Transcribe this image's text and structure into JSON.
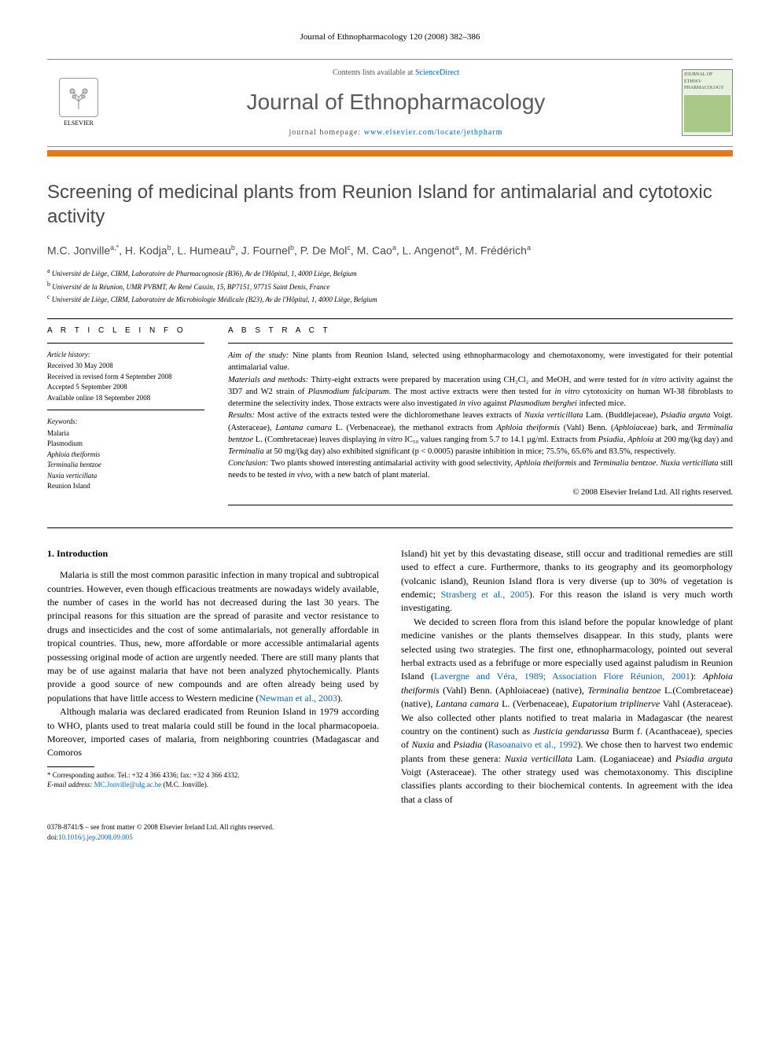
{
  "header": {
    "running_head": "Journal of Ethnopharmacology 120 (2008) 382–386",
    "contents_line_prefix": "Contents lists available at ",
    "contents_link": "ScienceDirect",
    "journal_name": "Journal of Ethnopharmacology",
    "homepage_prefix": "journal homepage: ",
    "homepage_url": "www.elsevier.com/locate/jethpharm",
    "publisher_name": "ELSEVIER",
    "cover_label": "JOURNAL OF ETHNO-PHARMACOLOGY"
  },
  "colors": {
    "accent_bar": "#e67817",
    "link": "#0066cc",
    "heading_gray": "#4a4a4a",
    "background": "#ffffff"
  },
  "article": {
    "title": "Screening of medicinal plants from Reunion Island for antimalarial and cytotoxic activity",
    "authors_html": "M.C. Jonville<sup>a,*</sup>, H. Kodja<sup>b</sup>, L. Humeau<sup>b</sup>, J. Fournel<sup>b</sup>, P. De Mol<sup>c</sup>, M. Cao<sup>a</sup>, L. Angenot<sup>a</sup>, M. Frédérich<sup>a</sup>",
    "affiliations": [
      {
        "sup": "a",
        "text": "Université de Liège, CIRM, Laboratoire de Pharmacognosie (B36), Av de l'Hôpital, 1, 4000 Liège, Belgium"
      },
      {
        "sup": "b",
        "text": "Université de la Réunion, UMR PVBMT, Av René Cassin, 15, BP7151, 97715 Saint Denis, France"
      },
      {
        "sup": "c",
        "text": "Université de Liège, CIRM, Laboratoire de Microbiologie Médicale (B23), Av de l'Hôpital, 1, 4000 Liège, Belgium"
      }
    ]
  },
  "article_info": {
    "head": "A R T I C L E   I N F O",
    "history_head": "Article history:",
    "history": [
      "Received 30 May 2008",
      "Received in revised form 4 September 2008",
      "Accepted 5 September 2008",
      "Available online 18 September 2008"
    ],
    "keywords_head": "Keywords:",
    "keywords": [
      "Malaria",
      "Plasmodium",
      "Aphloia theiformis",
      "Terminalia bentzoe",
      "Nuxia verticillata",
      "Reunion Island"
    ]
  },
  "abstract": {
    "head": "A B S T R A C T",
    "paragraphs": [
      {
        "label": "Aim of the study:",
        "text": " Nine plants from Reunion Island, selected using ethnopharmacology and chemotaxonomy, were investigated for their potential antimalarial value."
      },
      {
        "label": "Materials and methods:",
        "text": " Thirty-eight extracts were prepared by maceration using CH₂Cl₂ and MeOH, and were tested for in vitro activity against the 3D7 and W2 strain of Plasmodium falciparum. The most active extracts were then tested for in vitro cytotoxicity on human WI-38 fibroblasts to determine the selectivity index. Those extracts were also investigated in vivo against Plasmodium berghei infected mice."
      },
      {
        "label": "Results:",
        "text": " Most active of the extracts tested were the dichloromethane leaves extracts of Nuxia verticillata Lam. (Buddlejaceae), Psiadia arguta Voigt. (Asteraceae), Lantana camara L. (Verbenaceae), the methanol extracts from Aphloia theiformis (Vahl) Benn. (Aphloiaceae) bark, and Terminalia bentzoe L. (Combretaceae) leaves displaying in vitro IC₅₀ values ranging from 5.7 to 14.1 µg/ml. Extracts from Psiadia, Aphloia at 200 mg/(kg day) and Terminalia at 50 mg/(kg day) also exhibited significant (p < 0.0005) parasite inhibition in mice; 75.5%, 65.6% and 83.5%, respectively."
      },
      {
        "label": "Conclusion:",
        "text": " Two plants showed interesting antimalarial activity with good selectivity, Aphloia theiformis and Terminalia bentzoe. Nuxia verticillata still needs to be tested in vivo, with a new batch of plant material."
      }
    ],
    "copyright": "© 2008 Elsevier Ireland Ltd. All rights reserved."
  },
  "body": {
    "section_number": "1.",
    "section_title": "Introduction",
    "p1": "Malaria is still the most common parasitic infection in many tropical and subtropical countries. However, even though efficacious treatments are nowadays widely available, the number of cases in the world has not decreased during the last 30 years. The principal reasons for this situation are the spread of parasite and vector resistance to drugs and insecticides and the cost of some antimalarials, not generally affordable in tropical countries. Thus, new, more affordable or more accessible antimalarial agents possessing original mode of action are urgently needed. There are still many plants that may be of use against malaria that have not been analyzed phytochemically. Plants provide a good source of new compounds and are often already being used by populations that have little access to Western medicine (",
    "p1_cite": "Newman et al., 2003",
    "p1_end": ").",
    "p2": "Although malaria was declared eradicated from Reunion Island in 1979 according to WHO, plants used to treat malaria could still be found in the local pharmacopoeia. Moreover, imported cases of malaria, from neighboring countries (Madagascar and Comoros",
    "p3_a": "Island) hit yet by this devastating disease, still occur and traditional remedies are still used to effect a cure. Furthermore, thanks to its geography and its geomorphology (volcanic island), Reunion Island flora is very diverse (up to 30% of vegetation is endemic; ",
    "p3_cite": "Strasberg et al., 2005",
    "p3_b": "). For this reason the island is very much worth investigating.",
    "p4_a": "We decided to screen flora from this island before the popular knowledge of plant medicine vanishes or the plants themselves disappear. In this study, plants were selected using two strategies. The first one, ethnopharmacology, pointed out several herbal extracts used as a febrifuge or more especially used against paludism in Reunion Island (",
    "p4_cite1": "Lavergne and Véra, 1989; Association Flore Réunion, 2001",
    "p4_b": "): ",
    "p4_sp1": "Aphloia theiformis",
    "p4_c": " (Vahl) Benn. (Aphloiaceae) (native), ",
    "p4_sp2": "Terminalia bentzoe",
    "p4_d": " L.(Combretaceae) (native), ",
    "p4_sp3": "Lantana camara",
    "p4_e": " L. (Verbenaceae), ",
    "p4_sp4": "Eupatorium triplinerve",
    "p4_f": " Vahl (Asteraceae). We also collected other plants notified to treat malaria in Madagascar (the nearest country on the continent) such as ",
    "p4_sp5": "Justicia gendarussa",
    "p4_g": " Burm f. (Acanthaceae), species of ",
    "p4_sp6": "Nuxia",
    "p4_h": " and ",
    "p4_sp7": "Psiadia",
    "p4_i": " (",
    "p4_cite2": "Rasoanaivo et al., 1992",
    "p4_j": "). We chose then to harvest two endemic plants from these genera: ",
    "p4_sp8": "Nuxia verticillata",
    "p4_k": " Lam. (Loganiaceae) and ",
    "p4_sp9": "Psiadia arguta",
    "p4_l": " Voigt (Asteraceae). The other strategy used was chemotaxonomy. This discipline classifies plants according to their biochemical contents. In agreement with the idea that a class of"
  },
  "footnote": {
    "corr_label": "* Corresponding author.",
    "tel": "Tel.: +32 4 366 4336; fax: +32 4 366 4332.",
    "email_label": "E-mail address:",
    "email": "MC.Jonville@ulg.ac.be",
    "email_name": "(M.C. Jonville)."
  },
  "footer": {
    "issn": "0378-8741/$ – see front matter © 2008 Elsevier Ireland Ltd. All rights reserved.",
    "doi_label": "doi:",
    "doi": "10.1016/j.jep.2008.09.005"
  }
}
